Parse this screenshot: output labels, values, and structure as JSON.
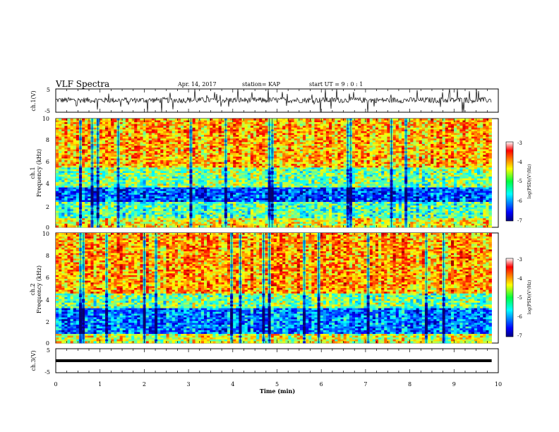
{
  "header": {
    "title": "VLF Spectra",
    "date": "Apr. 14, 2017",
    "station": "station= KAP",
    "start": "start  UT =   9 : 0 : 1"
  },
  "chart_data": [
    {
      "type": "line",
      "panel": "waveform ch.1",
      "ylabel": "ch.1(V)",
      "ylim": [
        -5,
        5
      ],
      "yticks": [
        "5",
        "-5"
      ],
      "x_unit": "min",
      "xlim": [
        0,
        10
      ],
      "data_extent_min": 9.85,
      "baseline_v": 0.2,
      "noise_amplitude_v": 1.2
    },
    {
      "type": "heatmap",
      "panel": "spectrogram ch.1",
      "ylabel": "ch.1\nFrequency (kHz)",
      "ylim": [
        0,
        10
      ],
      "yticks": [
        "0",
        "2",
        "4",
        "6",
        "8",
        "10"
      ],
      "xlim": [
        0,
        10
      ],
      "colorbar": {
        "label": "log(PSD)(V²/Hz)",
        "range": [
          -7,
          -3
        ],
        "ticks": [
          "-3",
          "-4",
          "-5",
          "-6",
          "-7"
        ]
      },
      "description_bands": [
        {
          "f_khz": [
            0,
            0.8
          ],
          "level": -4.5
        },
        {
          "f_khz": [
            0.8,
            2.4
          ],
          "level": -5.2
        },
        {
          "f_khz": [
            2.4,
            3.6
          ],
          "level": -6.2
        },
        {
          "f_khz": [
            3.6,
            5.5
          ],
          "level": -5.0
        },
        {
          "f_khz": [
            5.5,
            10
          ],
          "level": -4.2
        }
      ]
    },
    {
      "type": "heatmap",
      "panel": "spectrogram ch.2",
      "ylabel": "ch.2\nFrequency (kHz)",
      "ylim": [
        0,
        10
      ],
      "yticks": [
        "0",
        "2",
        "4",
        "6",
        "8",
        "10"
      ],
      "xlim": [
        0,
        10
      ],
      "colorbar": {
        "label": "log(PSD)(V²/Hz)",
        "range": [
          -7,
          -3
        ],
        "ticks": [
          "-3",
          "-4",
          "-5",
          "-6",
          "-7"
        ]
      },
      "description_bands": [
        {
          "f_khz": [
            0,
            0.8
          ],
          "level": -4.6
        },
        {
          "f_khz": [
            0.8,
            3.2
          ],
          "level": -6.0
        },
        {
          "f_khz": [
            3.2,
            4.5
          ],
          "level": -5.0
        },
        {
          "f_khz": [
            4.5,
            10
          ],
          "level": -4.1
        }
      ]
    },
    {
      "type": "line",
      "panel": "waveform ch.3",
      "ylabel": "ch.3(V)",
      "ylim": [
        -5,
        5
      ],
      "yticks": [
        "5",
        "-5"
      ],
      "xlabel": "Time  (min)",
      "xlim": [
        0,
        10
      ],
      "xticks": [
        "0",
        "1",
        "2",
        "3",
        "4",
        "5",
        "6",
        "7",
        "8",
        "9",
        "10"
      ],
      "constant_value_v": 0.0
    }
  ]
}
